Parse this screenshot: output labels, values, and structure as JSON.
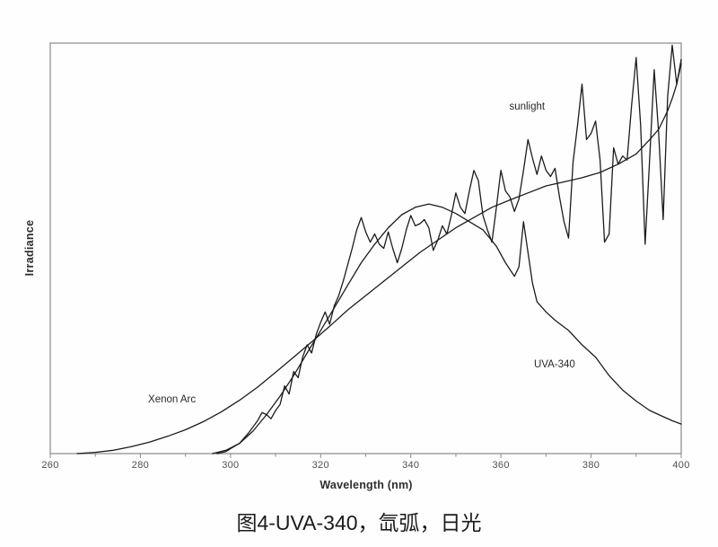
{
  "figure": {
    "caption": "图4-UVA-340，氙弧，日光"
  },
  "chart_data": {
    "type": "line",
    "title": "",
    "xlabel": "Wavelength (nm)",
    "ylabel": "Irradiance",
    "xlim": [
      260,
      400
    ],
    "ylim": [
      0,
      1
    ],
    "grid": false,
    "legend_position": "inline-annotations",
    "x_major_ticks": [
      260,
      280,
      300,
      320,
      340,
      360,
      380,
      400
    ],
    "x_minor_ticks": [
      270,
      290,
      310,
      330,
      350,
      370,
      390
    ],
    "line_color": "#1c1c1c",
    "frame_color": "#9a9a9a",
    "annotations": [
      {
        "id": "sunlight",
        "text": "sunlight",
        "x": 365.8,
        "y": 0.845
      },
      {
        "id": "xenon-arc",
        "text": "Xenon Arc",
        "x": 287.0,
        "y": 0.131
      },
      {
        "id": "uva-340",
        "text": "UVA-340",
        "x": 371.9,
        "y": 0.217
      }
    ],
    "series": [
      {
        "name": "sunlight",
        "color": "#1c1c1c",
        "points": [
          [
            297,
            0.0
          ],
          [
            299,
            0.005
          ],
          [
            300,
            0.012
          ],
          [
            302,
            0.025
          ],
          [
            304,
            0.05
          ],
          [
            306,
            0.08
          ],
          [
            307,
            0.1
          ],
          [
            308,
            0.095
          ],
          [
            309,
            0.085
          ],
          [
            310,
            0.105
          ],
          [
            311,
            0.12
          ],
          [
            312,
            0.165
          ],
          [
            313,
            0.145
          ],
          [
            314,
            0.2
          ],
          [
            315,
            0.185
          ],
          [
            316,
            0.235
          ],
          [
            317,
            0.265
          ],
          [
            318,
            0.245
          ],
          [
            319,
            0.29
          ],
          [
            320,
            0.32
          ],
          [
            321,
            0.345
          ],
          [
            322,
            0.315
          ],
          [
            323,
            0.36
          ],
          [
            324,
            0.385
          ],
          [
            325,
            0.42
          ],
          [
            326,
            0.46
          ],
          [
            327,
            0.5
          ],
          [
            328,
            0.545
          ],
          [
            329,
            0.575
          ],
          [
            330,
            0.54
          ],
          [
            331,
            0.515
          ],
          [
            332,
            0.535
          ],
          [
            333,
            0.51
          ],
          [
            334,
            0.5
          ],
          [
            335,
            0.54
          ],
          [
            336,
            0.5
          ],
          [
            337,
            0.465
          ],
          [
            338,
            0.5
          ],
          [
            339,
            0.545
          ],
          [
            340,
            0.58
          ],
          [
            341,
            0.555
          ],
          [
            342,
            0.56
          ],
          [
            343,
            0.57
          ],
          [
            344,
            0.55
          ],
          [
            345,
            0.495
          ],
          [
            346,
            0.52
          ],
          [
            347,
            0.555
          ],
          [
            348,
            0.535
          ],
          [
            349,
            0.58
          ],
          [
            350,
            0.635
          ],
          [
            351,
            0.6
          ],
          [
            352,
            0.585
          ],
          [
            353,
            0.64
          ],
          [
            354,
            0.69
          ],
          [
            355,
            0.665
          ],
          [
            356,
            0.58
          ],
          [
            357,
            0.545
          ],
          [
            358,
            0.515
          ],
          [
            359,
            0.6
          ],
          [
            360,
            0.69
          ],
          [
            361,
            0.64
          ],
          [
            362,
            0.625
          ],
          [
            363,
            0.59
          ],
          [
            364,
            0.62
          ],
          [
            365,
            0.69
          ],
          [
            366,
            0.765
          ],
          [
            367,
            0.72
          ],
          [
            368,
            0.68
          ],
          [
            369,
            0.725
          ],
          [
            370,
            0.69
          ],
          [
            371,
            0.675
          ],
          [
            372,
            0.695
          ],
          [
            373,
            0.625
          ],
          [
            374,
            0.565
          ],
          [
            375,
            0.525
          ],
          [
            376,
            0.71
          ],
          [
            377,
            0.8
          ],
          [
            378,
            0.9
          ],
          [
            379,
            0.765
          ],
          [
            380,
            0.78
          ],
          [
            381,
            0.81
          ],
          [
            382,
            0.715
          ],
          [
            383,
            0.515
          ],
          [
            384,
            0.535
          ],
          [
            385,
            0.745
          ],
          [
            386,
            0.705
          ],
          [
            387,
            0.725
          ],
          [
            388,
            0.715
          ],
          [
            389,
            0.85
          ],
          [
            390,
            0.965
          ],
          [
            391,
            0.8
          ],
          [
            392,
            0.51
          ],
          [
            393,
            0.72
          ],
          [
            394,
            0.935
          ],
          [
            395,
            0.78
          ],
          [
            396,
            0.57
          ],
          [
            397,
            0.87
          ],
          [
            398,
            0.995
          ],
          [
            399,
            0.9
          ],
          [
            400,
            0.96
          ]
        ]
      },
      {
        "name": "Xenon Arc",
        "color": "#1c1c1c",
        "points": [
          [
            266,
            0.0
          ],
          [
            270,
            0.003
          ],
          [
            274,
            0.008
          ],
          [
            278,
            0.017
          ],
          [
            282,
            0.028
          ],
          [
            286,
            0.042
          ],
          [
            290,
            0.058
          ],
          [
            294,
            0.078
          ],
          [
            298,
            0.102
          ],
          [
            302,
            0.13
          ],
          [
            306,
            0.162
          ],
          [
            310,
            0.198
          ],
          [
            314,
            0.235
          ],
          [
            318,
            0.272
          ],
          [
            322,
            0.31
          ],
          [
            326,
            0.35
          ],
          [
            330,
            0.385
          ],
          [
            334,
            0.42
          ],
          [
            338,
            0.455
          ],
          [
            342,
            0.49
          ],
          [
            346,
            0.52
          ],
          [
            350,
            0.55
          ],
          [
            354,
            0.575
          ],
          [
            358,
            0.6
          ],
          [
            362,
            0.618
          ],
          [
            366,
            0.635
          ],
          [
            370,
            0.652
          ],
          [
            374,
            0.662
          ],
          [
            378,
            0.672
          ],
          [
            382,
            0.685
          ],
          [
            386,
            0.705
          ],
          [
            390,
            0.73
          ],
          [
            393,
            0.765
          ],
          [
            395,
            0.79
          ],
          [
            397,
            0.835
          ],
          [
            398,
            0.865
          ],
          [
            399,
            0.9
          ],
          [
            400,
            0.95
          ]
        ]
      },
      {
        "name": "UVA-340",
        "color": "#1c1c1c",
        "points": [
          [
            296,
            0.0
          ],
          [
            299,
            0.008
          ],
          [
            302,
            0.025
          ],
          [
            305,
            0.055
          ],
          [
            308,
            0.095
          ],
          [
            311,
            0.14
          ],
          [
            314,
            0.19
          ],
          [
            317,
            0.245
          ],
          [
            320,
            0.3
          ],
          [
            323,
            0.355
          ],
          [
            326,
            0.41
          ],
          [
            329,
            0.465
          ],
          [
            332,
            0.51
          ],
          [
            335,
            0.55
          ],
          [
            338,
            0.582
          ],
          [
            341,
            0.6
          ],
          [
            344,
            0.608
          ],
          [
            347,
            0.6
          ],
          [
            350,
            0.585
          ],
          [
            353,
            0.565
          ],
          [
            356,
            0.545
          ],
          [
            359,
            0.505
          ],
          [
            361,
            0.465
          ],
          [
            363,
            0.432
          ],
          [
            364,
            0.455
          ],
          [
            365,
            0.565
          ],
          [
            366,
            0.49
          ],
          [
            367,
            0.415
          ],
          [
            368,
            0.37
          ],
          [
            370,
            0.345
          ],
          [
            372,
            0.325
          ],
          [
            375,
            0.3
          ],
          [
            378,
            0.265
          ],
          [
            381,
            0.235
          ],
          [
            384,
            0.19
          ],
          [
            387,
            0.155
          ],
          [
            390,
            0.128
          ],
          [
            393,
            0.105
          ],
          [
            396,
            0.09
          ],
          [
            398,
            0.08
          ],
          [
            400,
            0.072
          ]
        ]
      }
    ]
  }
}
